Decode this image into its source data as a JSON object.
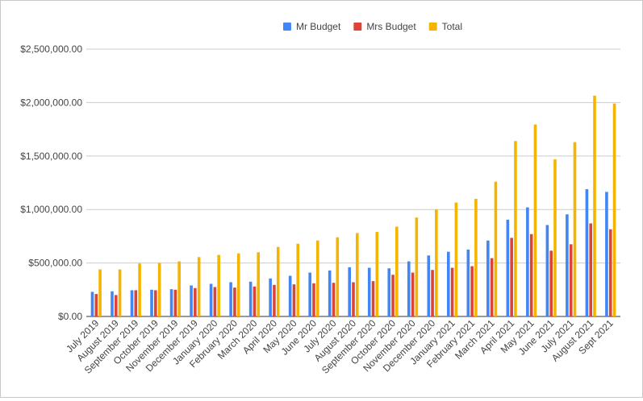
{
  "chart_data": {
    "type": "bar",
    "title": "",
    "xlabel": "",
    "ylabel": "",
    "ylim": [
      0,
      2500000
    ],
    "yticks": [
      "$0.00",
      "$500,000.00",
      "$1,000,000.00",
      "$1,500,000.00",
      "$2,000,000.00",
      "$2,500,000.00"
    ],
    "ytick_values": [
      0,
      500000,
      1000000,
      1500000,
      2000000,
      2500000
    ],
    "grid": true,
    "legend_position": "top",
    "categories": [
      "July 2019",
      "August 2019",
      "September 2019",
      "October 2019",
      "November 2019",
      "December 2019",
      "January 2020",
      "February 2020",
      "March 2020",
      "April 2020",
      "May 2020",
      "June 2020",
      "July 2020",
      "August 2020",
      "September 2020",
      "October 2020",
      "November 2020",
      "December 2020",
      "January 2021",
      "February 2021",
      "March 2021",
      "April 2021",
      "May 2021",
      "June 2021",
      "July 2021",
      "August 2021",
      "Sept 2021"
    ],
    "series": [
      {
        "name": "Mr Budget",
        "color": "#4285f4",
        "values": [
          230000,
          235000,
          245000,
          250000,
          255000,
          290000,
          305000,
          320000,
          325000,
          355000,
          380000,
          410000,
          430000,
          460000,
          455000,
          450000,
          515000,
          570000,
          605000,
          625000,
          710000,
          905000,
          1020000,
          855000,
          955000,
          1190000,
          1165000
        ]
      },
      {
        "name": "Mrs Budget",
        "color": "#db4437",
        "values": [
          210000,
          200000,
          245000,
          245000,
          250000,
          265000,
          275000,
          270000,
          280000,
          295000,
          300000,
          310000,
          315000,
          320000,
          330000,
          390000,
          410000,
          435000,
          455000,
          470000,
          545000,
          735000,
          770000,
          615000,
          675000,
          870000,
          815000
        ]
      },
      {
        "name": "Total",
        "color": "#f4b400",
        "values": [
          440000,
          440000,
          495000,
          500000,
          515000,
          555000,
          575000,
          590000,
          600000,
          650000,
          680000,
          710000,
          740000,
          780000,
          790000,
          840000,
          925000,
          1000000,
          1065000,
          1100000,
          1260000,
          1640000,
          1795000,
          1470000,
          1630000,
          2065000,
          1990000
        ]
      }
    ]
  }
}
